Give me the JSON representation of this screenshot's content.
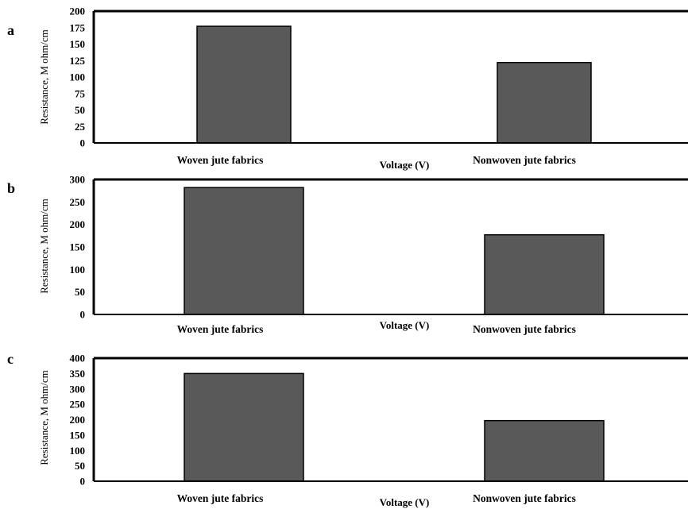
{
  "chart_data": [
    {
      "type": "bar",
      "panel_label": "a",
      "categories": [
        "Woven jute fabrics",
        "Nonwoven jute fabrics"
      ],
      "values": [
        177,
        122
      ],
      "xlabel": "Voltage (V)",
      "ylabel": "Resistance, M ohm/cm",
      "ylim": [
        0,
        200
      ],
      "yticks": [
        0,
        25,
        50,
        75,
        100,
        125,
        150,
        175,
        200
      ],
      "color": "#595959"
    },
    {
      "type": "bar",
      "panel_label": "b",
      "categories": [
        "Woven jute fabrics",
        "Nonwoven jute fabrics"
      ],
      "values": [
        282,
        177
      ],
      "xlabel": "Voltage (V)",
      "ylabel": "Resistance, M ohm/cm",
      "ylim": [
        0,
        300
      ],
      "yticks": [
        0,
        50,
        100,
        150,
        200,
        250,
        300
      ],
      "color": "#595959"
    },
    {
      "type": "bar",
      "panel_label": "c",
      "categories": [
        "Woven jute fabrics",
        "Nonwoven jute fabrics"
      ],
      "values": [
        350,
        197
      ],
      "xlabel": "Voltage (V)",
      "ylabel": "Resistance, M ohm/cm",
      "ylim": [
        0,
        400
      ],
      "yticks": [
        0,
        50,
        100,
        150,
        200,
        250,
        300,
        350,
        400
      ],
      "color": "#595959"
    }
  ]
}
